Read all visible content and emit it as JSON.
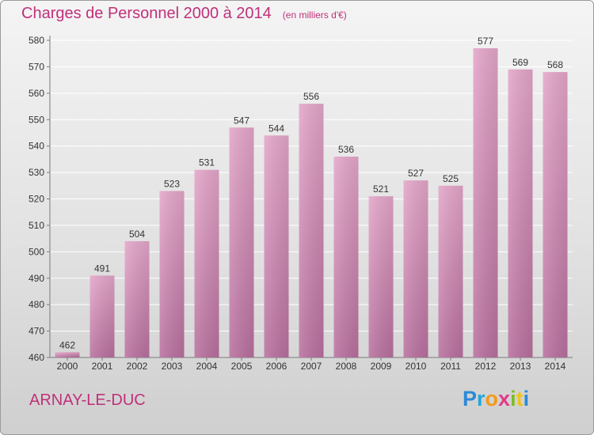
{
  "title": "Charges de Personnel 2000 à 2014",
  "unit_note": "(en milliers d'€)",
  "location": "ARNAY-LE-DUC",
  "logo": {
    "text": "Proxiti",
    "letters": [
      {
        "ch": "P",
        "color": "#2b8ad6"
      },
      {
        "ch": "r",
        "color": "#1fa7d9"
      },
      {
        "ch": "o",
        "color": "#f29a1c"
      },
      {
        "ch": "x",
        "color": "#e23a8a"
      },
      {
        "ch": "i",
        "color": "#7dbb2a"
      },
      {
        "ch": "t",
        "color": "#f2c21c"
      },
      {
        "ch": "i",
        "color": "#2b8ad6"
      }
    ]
  },
  "colors": {
    "accent": "#c0307a",
    "bar_top": "#e4a6c9",
    "bar_bottom": "#b8709e",
    "axis": "#7a7a7a",
    "grid": "#ffffff"
  },
  "chart_data": {
    "type": "bar",
    "title": "Charges de Personnel 2000 à 2014",
    "subtitle": "(en milliers d'€)",
    "categories": [
      "2000",
      "2001",
      "2002",
      "2003",
      "2004",
      "2005",
      "2006",
      "2007",
      "2008",
      "2009",
      "2010",
      "2011",
      "2012",
      "2013",
      "2014"
    ],
    "values": [
      462,
      491,
      504,
      523,
      531,
      547,
      544,
      556,
      536,
      521,
      527,
      525,
      577,
      569,
      568
    ],
    "ylim": [
      460,
      580
    ],
    "yticks": [
      460,
      470,
      480,
      490,
      500,
      510,
      520,
      530,
      540,
      550,
      560,
      570,
      580
    ],
    "grid": true,
    "data_labels": true
  }
}
